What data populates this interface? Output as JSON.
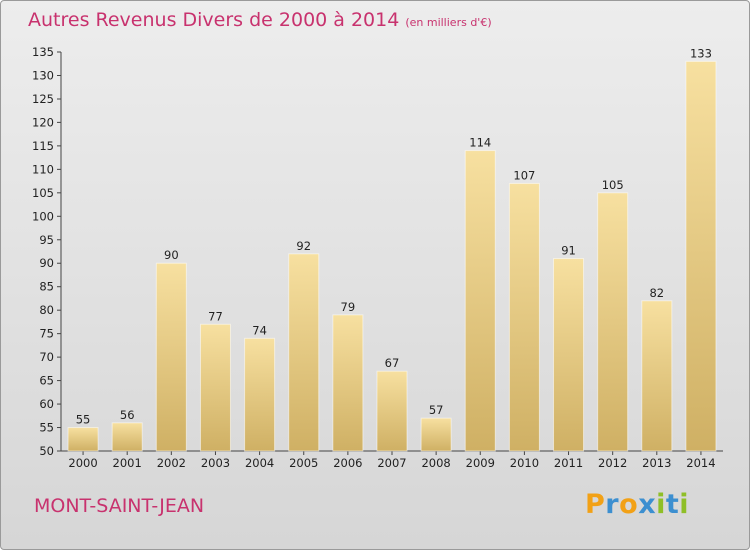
{
  "header": {
    "title": "Autres Revenus Divers de 2000 à 2014",
    "unit": "(en milliers d'€)"
  },
  "footer": {
    "commune": "MONT-SAINT-JEAN",
    "logo": [
      "P",
      "r",
      "o",
      "x",
      "i",
      "t",
      "i"
    ],
    "logo_colors": [
      "#f2a116",
      "#3c8fd0",
      "#f2a116",
      "#3c8fd0",
      "#8fbf27",
      "#3c8fd0",
      "#8fbf27"
    ]
  },
  "colors": {
    "title": "#c8326e",
    "bar_light": "#f7e0a0",
    "bar_dark": "#cfb064"
  },
  "chart_data": {
    "type": "bar",
    "title": "Autres Revenus Divers de 2000 à 2014",
    "subtitle": "(en milliers d'€)",
    "categories": [
      "2000",
      "2001",
      "2002",
      "2003",
      "2004",
      "2005",
      "2006",
      "2007",
      "2008",
      "2009",
      "2010",
      "2011",
      "2012",
      "2013",
      "2014"
    ],
    "values": [
      55,
      56,
      90,
      77,
      74,
      92,
      79,
      67,
      57,
      114,
      107,
      91,
      105,
      82,
      133
    ],
    "ylim": [
      50,
      135
    ],
    "yticks": [
      50,
      55,
      60,
      65,
      70,
      75,
      80,
      85,
      90,
      95,
      100,
      105,
      110,
      115,
      120,
      125,
      130,
      135
    ],
    "grid": false,
    "xlabel": "",
    "ylabel": ""
  }
}
